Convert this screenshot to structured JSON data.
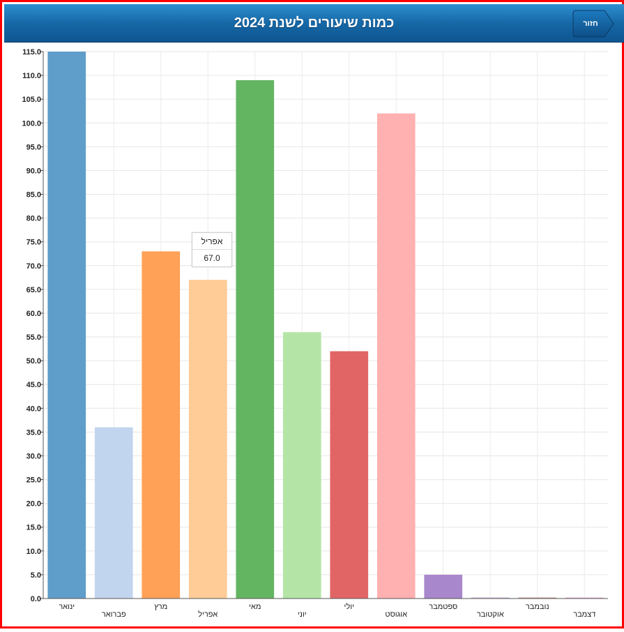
{
  "header": {
    "title": "כמות שיעורים לשנת 2024",
    "back_label": "חזור"
  },
  "tooltip": {
    "title": "אפריל",
    "value": "67.0"
  },
  "chart_data": {
    "type": "bar",
    "title": "כמות שיעורים לשנת 2024",
    "xlabel": "",
    "ylabel": "",
    "categories": [
      "ינואר",
      "פברואר",
      "מרץ",
      "אפריל",
      "מאי",
      "יוני",
      "יולי",
      "אוגוסט",
      "ספטמבר",
      "אוקטובר",
      "נובמבר",
      "דצמבר"
    ],
    "values": [
      115,
      36,
      73,
      67,
      109,
      56,
      52,
      102,
      5,
      0,
      0,
      0
    ],
    "colors": [
      "#5f9dcb",
      "#c2d5ee",
      "#ffa157",
      "#ffcb96",
      "#64b562",
      "#b4e5a7",
      "#e26565",
      "#ffb0b0",
      "#a887cc",
      "#c9b6dc",
      "#c49c94",
      "#eab8d9"
    ],
    "ylim": [
      0,
      115
    ],
    "ytick_step": 5,
    "grid": true,
    "legend": "none"
  }
}
